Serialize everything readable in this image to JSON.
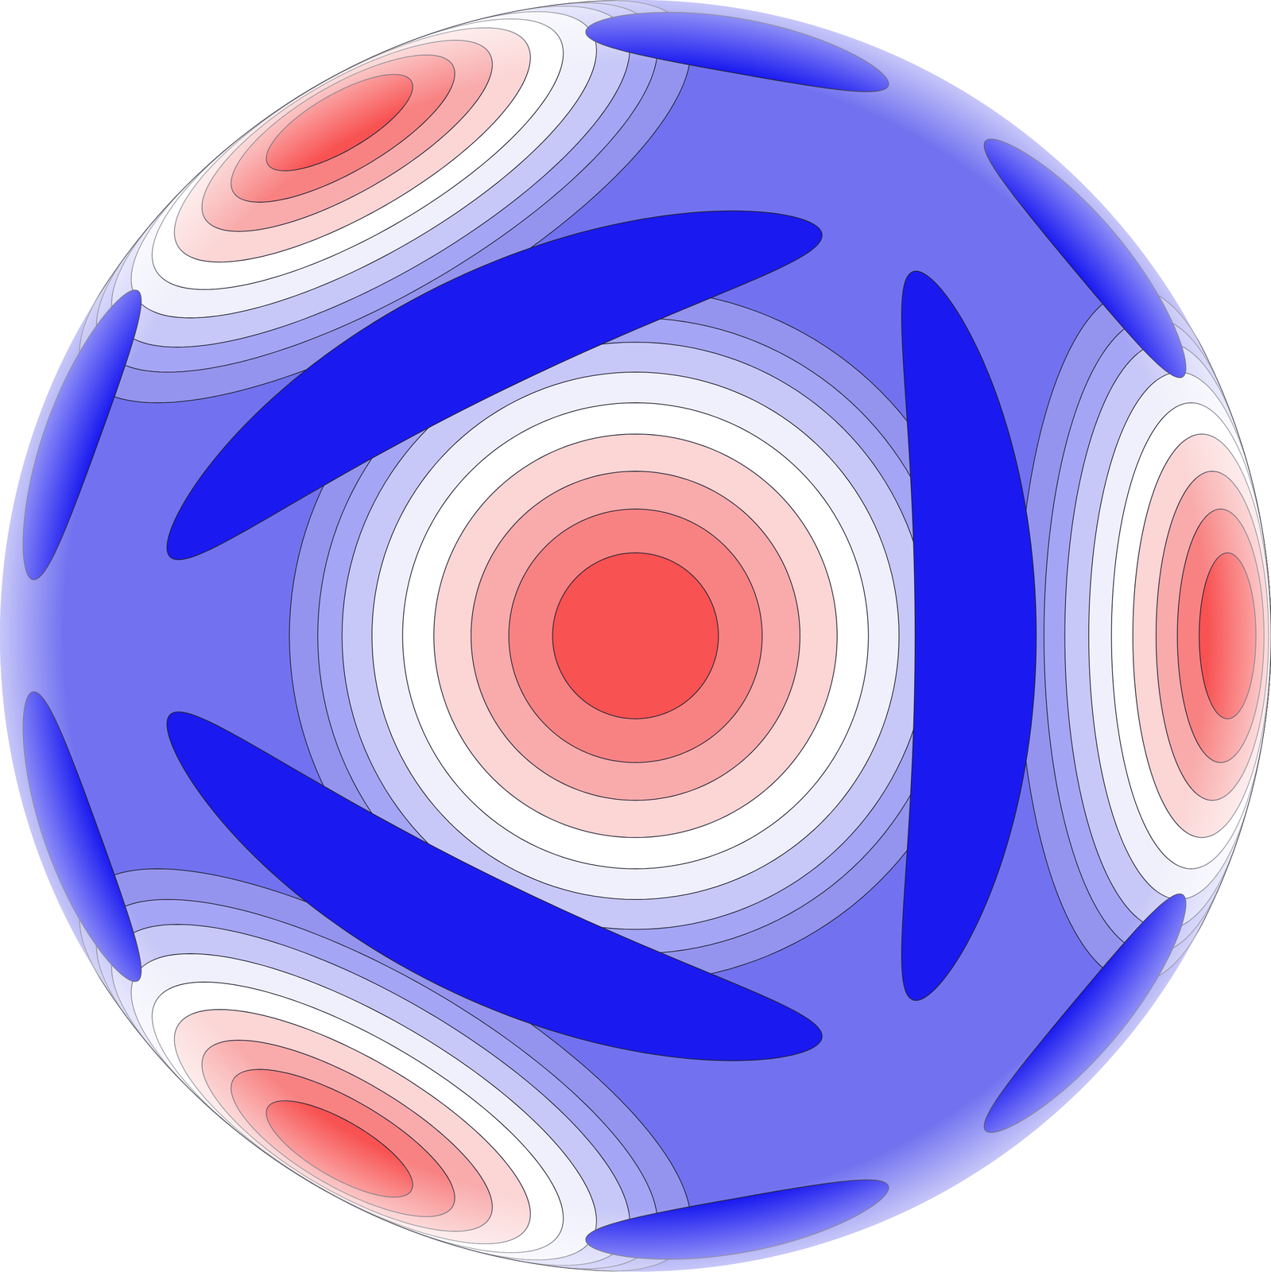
{
  "chart_data": {
    "type": "contour_sphere",
    "tick_labels": false,
    "grid": false,
    "xlim": [
      -1,
      1
    ],
    "ylim": [
      -1,
      1
    ],
    "color": "#7272f0",
    "maxima": {
      "colors": [
        "#f85252",
        "#f88282",
        "#f9abab",
        "#fcd5d5",
        "#ffffff",
        "#f0f0fc",
        "#c8c8f8",
        "#a5a5f6",
        "#9494ee"
      ],
      "radii": [
        7.5,
        11.5,
        15,
        18.5,
        21.5,
        24.5,
        27.5,
        30,
        33
      ],
      "centers": [
        [
          70,
          0
        ],
        [
          -54,
          54.5
        ],
        [
          -54,
          -54.5
        ],
        [
          0,
          0
        ]
      ]
    },
    "minima": {
      "color": "#1a1af0",
      "shapes": [
        [
          32.6,
          0,
          35,
          6.5,
          90
        ],
        [
          -17.8,
          27.8,
          35,
          6.5,
          30
        ],
        [
          -17.8,
          -27.8,
          35,
          6.5,
          -30
        ],
        [
          67,
          37.7,
          14,
          8,
          104
        ],
        [
          67,
          -37.7,
          14,
          8,
          76
        ],
        [
          28.1,
          69.5,
          14,
          8,
          150
        ],
        [
          28.1,
          -69.5,
          14,
          8,
          30
        ],
        [
          -70.9,
          19,
          14,
          8,
          84
        ],
        [
          -70.9,
          -19,
          14,
          8,
          96
        ]
      ]
    }
  }
}
